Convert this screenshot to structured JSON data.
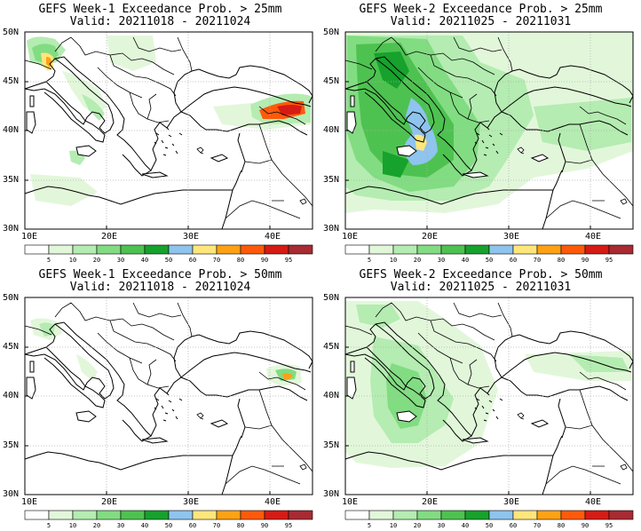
{
  "panels": [
    {
      "title": "GEFS Week-1 Exceedance Prob. > 25mm",
      "valid": "Valid: 20211018 - 20211024",
      "lat_labels": [
        "50N",
        "45N",
        "40N",
        "35N",
        "30N"
      ],
      "lon_labels": [
        "10E",
        "20E",
        "30E",
        "40E"
      ],
      "legend_values": [
        "5",
        "10",
        "20",
        "30",
        "40",
        "50",
        "60",
        "70",
        "80",
        "90",
        "95"
      ]
    },
    {
      "title": "GEFS Week-2 Exceedance Prob. > 25mm",
      "valid": "Valid: 20211025 - 20211031",
      "lat_labels": [
        "50N",
        "45N",
        "40N",
        "35N",
        "30N"
      ],
      "lon_labels": [
        "10E",
        "20E",
        "30E",
        "40E"
      ],
      "legend_values": [
        "5",
        "10",
        "20",
        "30",
        "40",
        "50",
        "60",
        "70",
        "80",
        "90",
        "95"
      ]
    },
    {
      "title": "GEFS Week-1 Exceedance Prob. > 50mm",
      "valid": "Valid: 20211018 - 20211024",
      "lat_labels": [
        "50N",
        "45N",
        "40N",
        "35N",
        "30N"
      ],
      "lon_labels": [
        "10E",
        "20E",
        "30E",
        "40E"
      ],
      "legend_values": [
        "5",
        "10",
        "20",
        "30",
        "40",
        "50",
        "60",
        "70",
        "80",
        "90",
        "95"
      ]
    },
    {
      "title": "GEFS Week-2 Exceedance Prob. > 50mm",
      "valid": "Valid: 20211025 - 20211031",
      "lat_labels": [
        "50N",
        "45N",
        "40N",
        "35N",
        "30N"
      ],
      "lon_labels": [
        "10E",
        "20E",
        "30E",
        "40E"
      ],
      "legend_values": [
        "5",
        "10",
        "20",
        "30",
        "40",
        "50",
        "60",
        "70",
        "80",
        "90",
        "95"
      ]
    }
  ],
  "legend_colors": [
    "#ffffff",
    "#e2f7da",
    "#b4ecb1",
    "#82dc82",
    "#4ec250",
    "#16a22c",
    "#8ec4ee",
    "#ffe67a",
    "#ffa114",
    "#ff5a0a",
    "#d61b14",
    "#a82a32"
  ],
  "map_colors": {
    "land": "#ffffff",
    "coast": "#000000",
    "grid": "#b0b0b0"
  }
}
